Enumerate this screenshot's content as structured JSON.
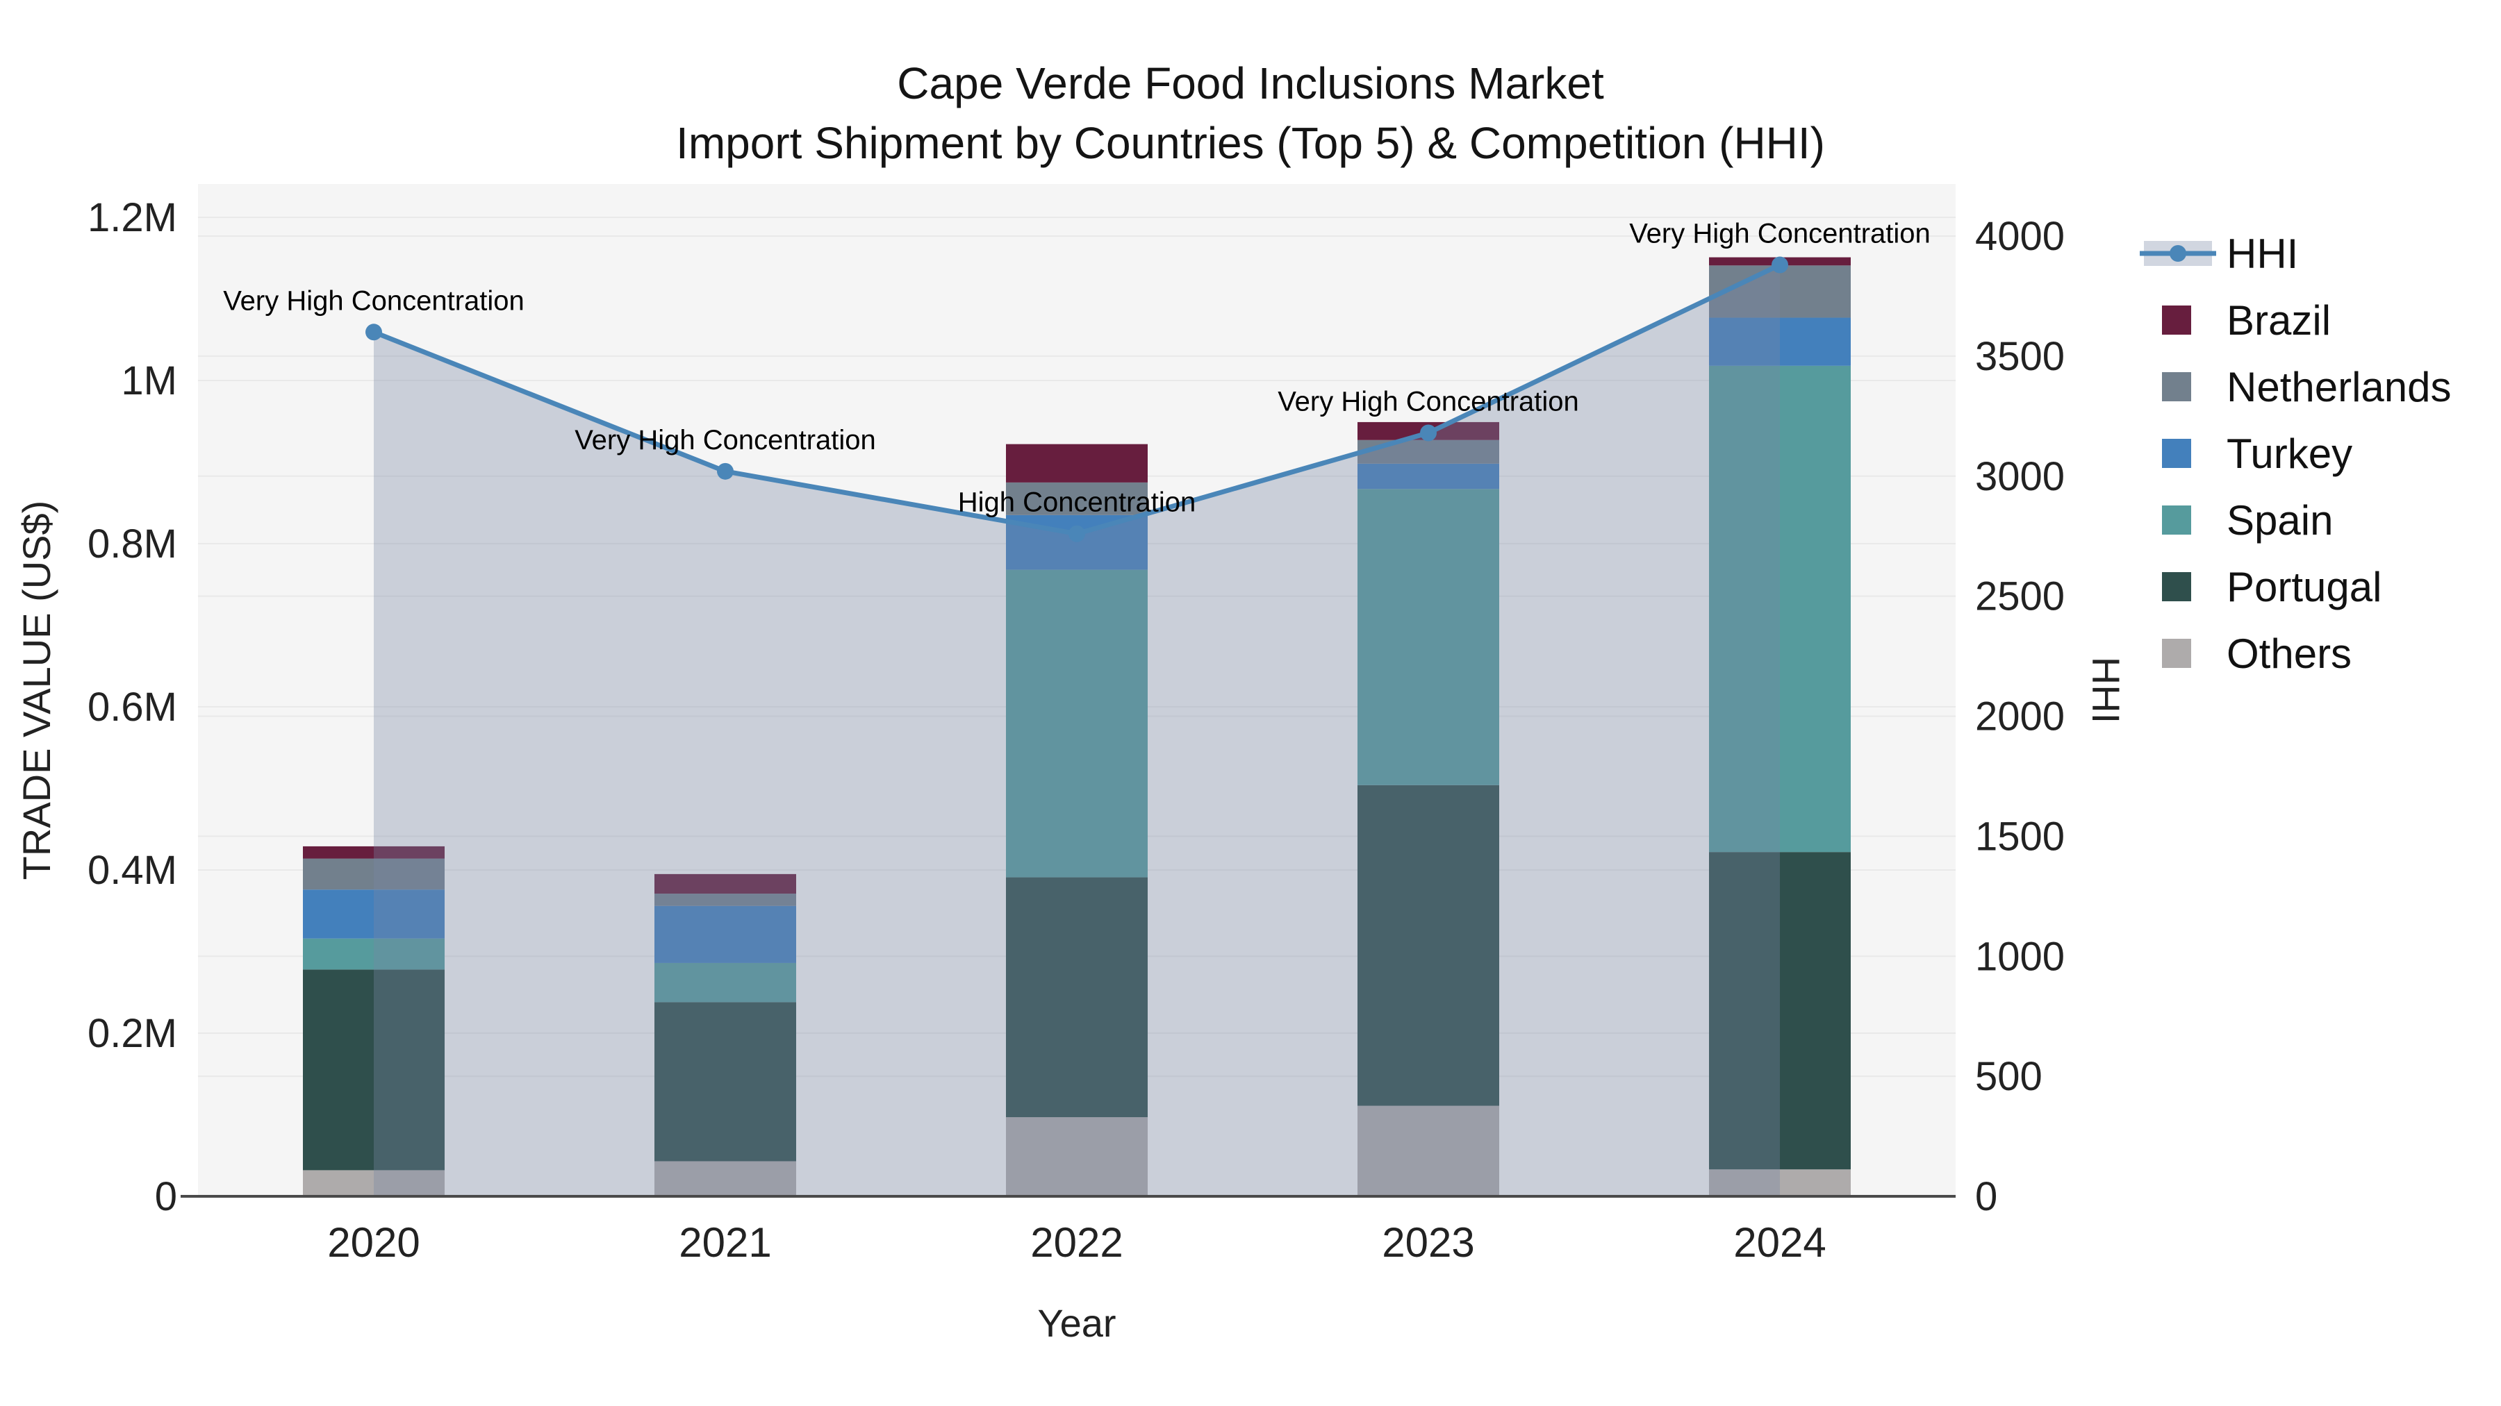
{
  "title": {
    "line1": "Cape Verde Food Inclusions Market",
    "line2": "Import Shipment by Countries (Top 5) & Competition (HHI)"
  },
  "chart_data": {
    "type": "bar+line",
    "title": "Cape Verde Food Inclusions Market — Import Shipment by Countries (Top 5) & Competition (HHI)",
    "categories": [
      "2020",
      "2021",
      "2022",
      "2023",
      "2024"
    ],
    "stack_order": "bottom-to-top",
    "series": [
      {
        "name": "Others",
        "color": "#aeabab",
        "values": [
          32000,
          43000,
          97000,
          111000,
          33000
        ]
      },
      {
        "name": "Portugal",
        "color": "#2f4f4c",
        "values": [
          246000,
          195000,
          294000,
          393000,
          389000
        ]
      },
      {
        "name": "Spain",
        "color": "#569b9d",
        "values": [
          38000,
          48000,
          377000,
          363000,
          596000
        ]
      },
      {
        "name": "Turkey",
        "color": "#4380bc",
        "values": [
          60000,
          70000,
          67000,
          31000,
          59000
        ]
      },
      {
        "name": "Netherlands",
        "color": "#72808d",
        "values": [
          38000,
          15000,
          40000,
          29000,
          64000
        ]
      },
      {
        "name": "Brazil",
        "color": "#671e3e",
        "values": [
          15000,
          24000,
          47000,
          22000,
          10000
        ]
      }
    ],
    "bar_totals": [
      429000,
      395000,
      922000,
      949000,
      1151000
    ],
    "line_series": {
      "name": "HHI",
      "color": "#4a86b8",
      "fill_color": "rgba(121,135,165,0.34)",
      "legend_band_color": "#d1d6e0",
      "values": [
        3600,
        3020,
        2760,
        3180,
        3880
      ]
    },
    "annotations": [
      {
        "category": "2020",
        "text": "Very High Concentration"
      },
      {
        "category": "2021",
        "text": "Very High Concentration"
      },
      {
        "category": "2022",
        "text": "High Concentration"
      },
      {
        "category": "2023",
        "text": "Very High Concentration"
      },
      {
        "category": "2024",
        "text": "Very High Concentration"
      }
    ],
    "y_left": {
      "label": "TRADE VALUE (US$)",
      "tick_labels": [
        "0",
        "0.2M",
        "0.4M",
        "0.6M",
        "0.8M",
        "1M",
        "1.2M"
      ],
      "tick_values": [
        0,
        200000,
        400000,
        600000,
        800000,
        1000000,
        1200000
      ],
      "range": [
        0,
        1240000
      ]
    },
    "y_right": {
      "label": "HHI",
      "tick_labels": [
        "0",
        "500",
        "1000",
        "1500",
        "2000",
        "2500",
        "3000",
        "3500",
        "4000"
      ],
      "tick_values": [
        0,
        500,
        1000,
        1500,
        2000,
        2500,
        3000,
        3500,
        4000
      ],
      "range": [
        0,
        4000
      ]
    },
    "x_axis": {
      "label": "Year"
    },
    "legend": {
      "position": "right",
      "items": [
        {
          "label": "HHI",
          "type": "line",
          "color": "#4a86b8"
        },
        {
          "label": "Brazil",
          "type": "swatch",
          "color": "#671e3e"
        },
        {
          "label": "Netherlands",
          "type": "swatch",
          "color": "#72808d"
        },
        {
          "label": "Turkey",
          "type": "swatch",
          "color": "#4380bc"
        },
        {
          "label": "Spain",
          "type": "swatch",
          "color": "#569b9d"
        },
        {
          "label": "Portugal",
          "type": "swatch",
          "color": "#2f4f4c"
        },
        {
          "label": "Others",
          "type": "swatch",
          "color": "#aeabab"
        }
      ]
    },
    "layout_hints": {
      "plot_background": "#f5f5f5",
      "gridline_color": "#e9e9e9",
      "axis_line_color": "#4a4a4a",
      "grid": "both-y-axes"
    }
  }
}
